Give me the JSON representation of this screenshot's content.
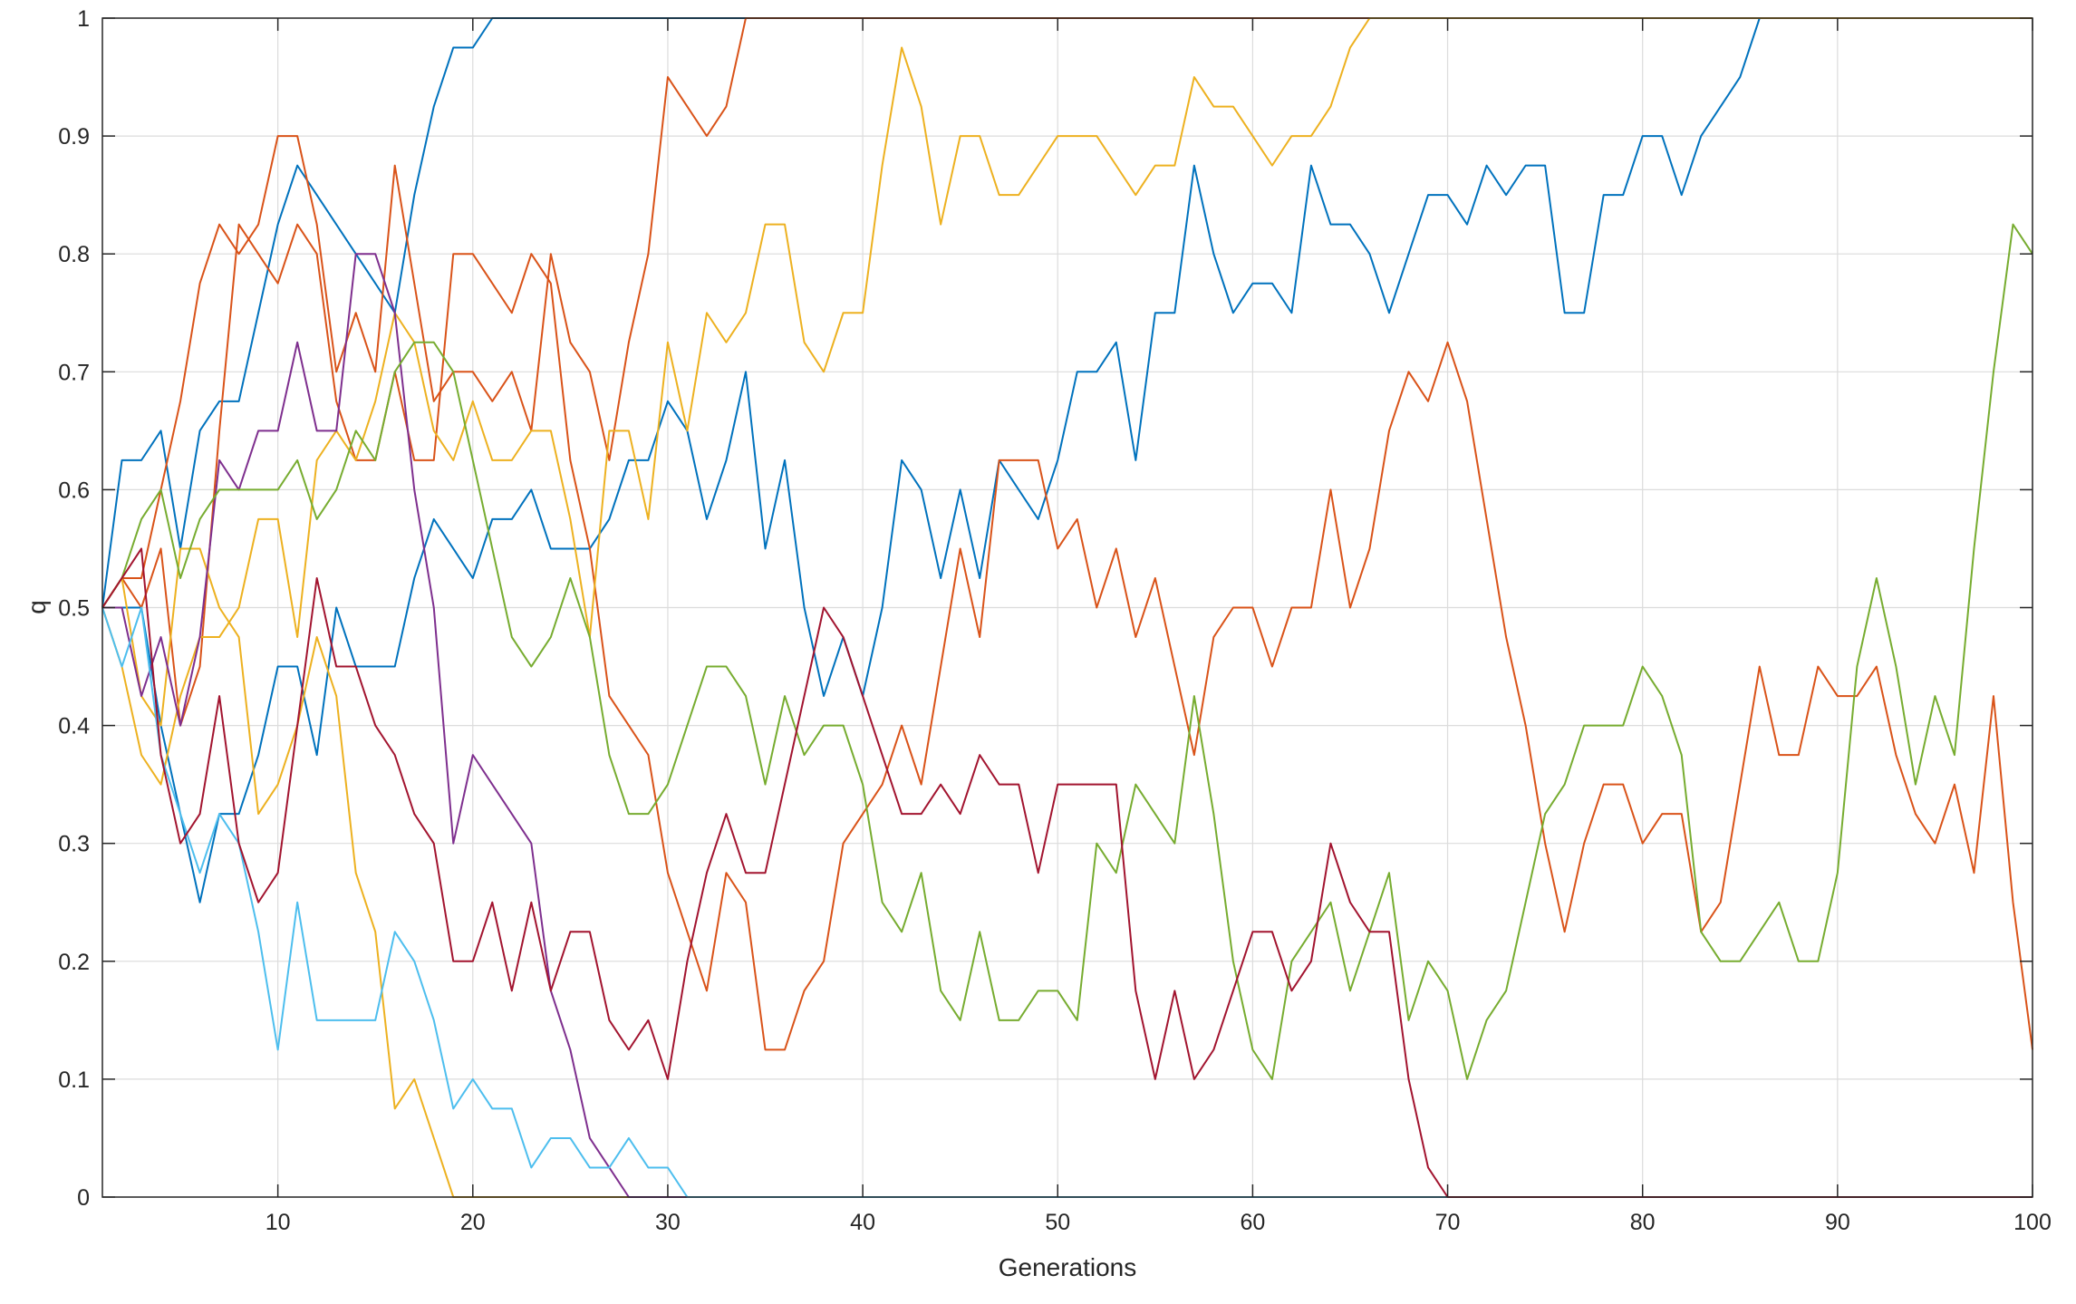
{
  "chart_data": {
    "type": "line",
    "title": "",
    "xlabel": "Generations",
    "ylabel": "q",
    "xlim": [
      1,
      100
    ],
    "ylim": [
      0,
      1
    ],
    "xticks": [
      10,
      20,
      30,
      40,
      50,
      60,
      70,
      80,
      90,
      100
    ],
    "yticks": [
      0,
      0.1,
      0.2,
      0.3,
      0.4,
      0.5,
      0.6,
      0.7,
      0.8,
      0.9,
      1
    ],
    "ytick_labels": [
      "0",
      "0.1",
      "0.2",
      "0.3",
      "0.4",
      "0.5",
      "0.6",
      "0.7",
      "0.8",
      "0.9",
      "1"
    ],
    "grid": true,
    "x": [
      1,
      2,
      3,
      4,
      5,
      6,
      7,
      8,
      9,
      10,
      11,
      12,
      13,
      14,
      15,
      16,
      17,
      18,
      19,
      20,
      21,
      22,
      23,
      24,
      25,
      26,
      27,
      28,
      29,
      30,
      31,
      32,
      33,
      34,
      35,
      36,
      37,
      38,
      39,
      40,
      41,
      42,
      43,
      44,
      45,
      46,
      47,
      48,
      49,
      50,
      51,
      52,
      53,
      54,
      55,
      56,
      57,
      58,
      59,
      60,
      61,
      62,
      63,
      64,
      65,
      66,
      67,
      68,
      69,
      70,
      71,
      72,
      73,
      74,
      75,
      76,
      77,
      78,
      79,
      80,
      81,
      82,
      83,
      84,
      85,
      86,
      87,
      88,
      89,
      90,
      91,
      92,
      93,
      94,
      95,
      96,
      97,
      98,
      99,
      100
    ],
    "series": [
      {
        "color": "#0072BD",
        "values": [
          0.5,
          0.625,
          0.625,
          0.65,
          0.55,
          0.65,
          0.675,
          0.675,
          0.75,
          0.825,
          0.875,
          0.85,
          0.825,
          0.8,
          0.775,
          0.75,
          0.85,
          0.925,
          0.975,
          0.975,
          1,
          1,
          1,
          1,
          1,
          1,
          1,
          1,
          1,
          1,
          1,
          1,
          1,
          1,
          1,
          1,
          1,
          1,
          1,
          1,
          1,
          1,
          1,
          1,
          1,
          1,
          1,
          1,
          1,
          1,
          1,
          1,
          1,
          1,
          1,
          1,
          1,
          1,
          1,
          1,
          1,
          1,
          1,
          1,
          1,
          1,
          1,
          1,
          1,
          1,
          1,
          1,
          1,
          1,
          1,
          1,
          1,
          1,
          1,
          1,
          1,
          1,
          1,
          1,
          1,
          1,
          1,
          1,
          1,
          1,
          1,
          1,
          1,
          1,
          1,
          1,
          1,
          1,
          1,
          1
        ]
      },
      {
        "color": "#0072BD",
        "values": [
          0.5,
          0.5,
          0.5,
          0.4,
          0.325,
          0.25,
          0.325,
          0.325,
          0.375,
          0.45,
          0.45,
          0.375,
          0.5,
          0.45,
          0.45,
          0.45,
          0.525,
          0.575,
          0.55,
          0.525,
          0.575,
          0.575,
          0.6,
          0.55,
          0.55,
          0.55,
          0.575,
          0.625,
          0.625,
          0.675,
          0.65,
          0.575,
          0.625,
          0.7,
          0.55,
          0.625,
          0.5,
          0.425,
          0.475,
          0.425,
          0.5,
          0.625,
          0.6,
          0.525,
          0.6,
          0.525,
          0.625,
          0.6,
          0.575,
          0.625,
          0.7,
          0.7,
          0.725,
          0.625,
          0.75,
          0.75,
          0.875,
          0.8,
          0.75,
          0.775,
          0.775,
          0.75,
          0.875,
          0.825,
          0.825,
          0.8,
          0.75,
          0.8,
          0.85,
          0.85,
          0.825,
          0.875,
          0.85,
          0.875,
          0.875,
          0.75,
          0.75,
          0.85,
          0.85,
          0.9,
          0.9,
          0.85,
          0.9,
          0.925,
          0.95,
          1,
          1,
          1,
          1,
          1,
          1,
          1,
          1,
          1,
          1,
          1,
          1,
          1,
          1,
          1
        ]
      },
      {
        "color": "#D95319",
        "values": [
          0.5,
          0.525,
          0.525,
          0.6,
          0.675,
          0.775,
          0.825,
          0.8,
          0.825,
          0.9,
          0.9,
          0.825,
          0.7,
          0.75,
          0.7,
          0.875,
          0.775,
          0.675,
          0.7,
          0.7,
          0.675,
          0.7,
          0.65,
          0.8,
          0.725,
          0.7,
          0.625,
          0.725,
          0.8,
          0.95,
          0.925,
          0.9,
          0.925,
          1,
          1,
          1,
          1,
          1,
          1,
          1,
          1,
          1,
          1,
          1,
          1,
          1,
          1,
          1,
          1,
          1,
          1,
          1,
          1,
          1,
          1,
          1,
          1,
          1,
          1,
          1,
          1,
          1,
          1,
          1,
          1,
          1,
          1,
          1,
          1,
          1,
          1,
          1,
          1,
          1,
          1,
          1,
          1,
          1,
          1,
          1,
          1,
          1,
          1,
          1,
          1,
          1,
          1,
          1,
          1,
          1,
          1,
          1,
          1,
          1,
          1,
          1,
          1,
          1,
          1,
          1
        ]
      },
      {
        "color": "#D95319",
        "values": [
          0.5,
          0.525,
          0.5,
          0.55,
          0.4,
          0.45,
          0.65,
          0.825,
          0.8,
          0.775,
          0.825,
          0.8,
          0.675,
          0.625,
          0.625,
          0.7,
          0.625,
          0.625,
          0.8,
          0.8,
          0.775,
          0.75,
          0.8,
          0.775,
          0.625,
          0.55,
          0.425,
          0.4,
          0.375,
          0.275,
          0.225,
          0.175,
          0.275,
          0.25,
          0.125,
          0.125,
          0.175,
          0.2,
          0.3,
          0.325,
          0.35,
          0.4,
          0.35,
          0.45,
          0.55,
          0.475,
          0.625,
          0.625,
          0.625,
          0.55,
          0.575,
          0.5,
          0.55,
          0.475,
          0.525,
          0.45,
          0.375,
          0.475,
          0.5,
          0.5,
          0.45,
          0.5,
          0.5,
          0.6,
          0.5,
          0.55,
          0.65,
          0.7,
          0.675,
          0.725,
          0.675,
          0.575,
          0.475,
          0.4,
          0.3,
          0.225,
          0.3,
          0.35,
          0.35,
          0.3,
          0.325,
          0.325,
          0.225,
          0.25,
          0.35,
          0.45,
          0.375,
          0.375,
          0.45,
          0.425,
          0.425,
          0.45,
          0.375,
          0.325,
          0.3,
          0.35,
          0.275,
          0.425,
          0.25,
          0.125
        ]
      },
      {
        "color": "#EDB120",
        "values": [
          0.5,
          0.45,
          0.375,
          0.35,
          0.425,
          0.475,
          0.475,
          0.5,
          0.575,
          0.575,
          0.475,
          0.625,
          0.65,
          0.625,
          0.675,
          0.75,
          0.725,
          0.65,
          0.625,
          0.675,
          0.625,
          0.625,
          0.65,
          0.65,
          0.575,
          0.475,
          0.65,
          0.65,
          0.575,
          0.725,
          0.65,
          0.75,
          0.725,
          0.75,
          0.825,
          0.825,
          0.725,
          0.7,
          0.75,
          0.75,
          0.875,
          0.975,
          0.925,
          0.825,
          0.9,
          0.9,
          0.85,
          0.85,
          0.875,
          0.9,
          0.9,
          0.9,
          0.875,
          0.85,
          0.875,
          0.875,
          0.95,
          0.925,
          0.925,
          0.9,
          0.875,
          0.9,
          0.9,
          0.925,
          0.975,
          1,
          1,
          1,
          1,
          1,
          1,
          1,
          1,
          1,
          1,
          1,
          1,
          1,
          1,
          1,
          1,
          1,
          1,
          1,
          1,
          1,
          1,
          1,
          1,
          1,
          1,
          1,
          1,
          1,
          1,
          1,
          1,
          1,
          1,
          1
        ]
      },
      {
        "color": "#EDB120",
        "values": [
          0.5,
          0.525,
          0.425,
          0.4,
          0.55,
          0.55,
          0.5,
          0.475,
          0.325,
          0.35,
          0.4,
          0.475,
          0.425,
          0.275,
          0.225,
          0.075,
          0.1,
          0.05,
          0,
          0,
          0,
          0,
          0,
          0,
          0,
          0,
          0,
          0,
          0,
          0,
          0,
          0,
          0,
          0,
          0,
          0,
          0,
          0,
          0,
          0,
          0,
          0,
          0,
          0,
          0,
          0,
          0,
          0,
          0,
          0,
          0,
          0,
          0,
          0,
          0,
          0,
          0,
          0,
          0,
          0,
          0,
          0,
          0,
          0,
          0,
          0,
          0,
          0,
          0,
          0,
          0,
          0,
          0,
          0,
          0,
          0,
          0,
          0,
          0,
          0,
          0,
          0,
          0,
          0,
          0,
          0,
          0,
          0,
          0,
          0,
          0,
          0,
          0,
          0,
          0,
          0,
          0,
          0,
          0,
          0
        ]
      },
      {
        "color": "#7E2F8E",
        "values": [
          0.5,
          0.5,
          0.425,
          0.475,
          0.4,
          0.475,
          0.625,
          0.6,
          0.65,
          0.65,
          0.725,
          0.65,
          0.65,
          0.8,
          0.8,
          0.75,
          0.6,
          0.5,
          0.3,
          0.375,
          0.35,
          0.325,
          0.3,
          0.175,
          0.125,
          0.05,
          0.025,
          0,
          0,
          0,
          0,
          0,
          0,
          0,
          0,
          0,
          0,
          0,
          0,
          0,
          0,
          0,
          0,
          0,
          0,
          0,
          0,
          0,
          0,
          0,
          0,
          0,
          0,
          0,
          0,
          0,
          0,
          0,
          0,
          0,
          0,
          0,
          0,
          0,
          0,
          0,
          0,
          0,
          0,
          0,
          0,
          0,
          0,
          0,
          0,
          0,
          0,
          0,
          0,
          0,
          0,
          0,
          0,
          0,
          0,
          0,
          0,
          0,
          0,
          0,
          0,
          0,
          0,
          0,
          0,
          0,
          0,
          0,
          0,
          0
        ]
      },
      {
        "color": "#77AC30",
        "values": [
          0.5,
          0.525,
          0.575,
          0.6,
          0.525,
          0.575,
          0.6,
          0.6,
          0.6,
          0.6,
          0.625,
          0.575,
          0.6,
          0.65,
          0.625,
          0.7,
          0.725,
          0.725,
          0.7,
          0.625,
          0.55,
          0.475,
          0.45,
          0.475,
          0.525,
          0.475,
          0.375,
          0.325,
          0.325,
          0.35,
          0.4,
          0.45,
          0.45,
          0.425,
          0.35,
          0.425,
          0.375,
          0.4,
          0.4,
          0.35,
          0.25,
          0.225,
          0.275,
          0.175,
          0.15,
          0.225,
          0.15,
          0.15,
          0.175,
          0.175,
          0.15,
          0.3,
          0.275,
          0.35,
          0.325,
          0.3,
          0.425,
          0.325,
          0.2,
          0.125,
          0.1,
          0.2,
          0.225,
          0.25,
          0.175,
          0.225,
          0.275,
          0.15,
          0.2,
          0.175,
          0.1,
          0.15,
          0.175,
          0.25,
          0.325,
          0.35,
          0.4,
          0.4,
          0.4,
          0.45,
          0.425,
          0.375,
          0.225,
          0.2,
          0.2,
          0.225,
          0.25,
          0.2,
          0.2,
          0.275,
          0.45,
          0.525,
          0.45,
          0.35,
          0.425,
          0.375,
          0.55,
          0.7,
          0.825,
          0.8
        ]
      },
      {
        "color": "#4DBEEE",
        "values": [
          0.5,
          0.45,
          0.5,
          0.375,
          0.325,
          0.275,
          0.325,
          0.3,
          0.225,
          0.125,
          0.25,
          0.15,
          0.15,
          0.15,
          0.15,
          0.225,
          0.2,
          0.15,
          0.075,
          0.1,
          0.075,
          0.075,
          0.025,
          0.05,
          0.05,
          0.025,
          0.025,
          0.05,
          0.025,
          0.025,
          0,
          0,
          0,
          0,
          0,
          0,
          0,
          0,
          0,
          0,
          0,
          0,
          0,
          0,
          0,
          0,
          0,
          0,
          0,
          0,
          0,
          0,
          0,
          0,
          0,
          0,
          0,
          0,
          0,
          0,
          0,
          0,
          0,
          0,
          0,
          0,
          0,
          0,
          0,
          0,
          0,
          0,
          0,
          0,
          0,
          0,
          0,
          0,
          0,
          0,
          0,
          0,
          0,
          0,
          0,
          0,
          0,
          0,
          0,
          0,
          0,
          0,
          0,
          0,
          0,
          0,
          0,
          0,
          0,
          0
        ]
      },
      {
        "color": "#A2142F",
        "values": [
          0.5,
          0.525,
          0.55,
          0.375,
          0.3,
          0.325,
          0.425,
          0.3,
          0.25,
          0.275,
          0.4,
          0.525,
          0.45,
          0.45,
          0.4,
          0.375,
          0.325,
          0.3,
          0.2,
          0.2,
          0.25,
          0.175,
          0.25,
          0.175,
          0.225,
          0.225,
          0.15,
          0.125,
          0.15,
          0.1,
          0.2,
          0.275,
          0.325,
          0.275,
          0.275,
          0.35,
          0.425,
          0.5,
          0.475,
          0.425,
          0.375,
          0.325,
          0.325,
          0.35,
          0.325,
          0.375,
          0.35,
          0.35,
          0.275,
          0.35,
          0.35,
          0.35,
          0.35,
          0.175,
          0.1,
          0.175,
          0.1,
          0.125,
          0.175,
          0.225,
          0.225,
          0.175,
          0.2,
          0.3,
          0.25,
          0.225,
          0.225,
          0.1,
          0.025,
          0,
          0,
          0,
          0,
          0,
          0,
          0,
          0,
          0,
          0,
          0,
          0,
          0,
          0,
          0,
          0,
          0,
          0,
          0,
          0,
          0,
          0,
          0,
          0,
          0,
          0,
          0,
          0,
          0,
          0,
          0
        ]
      }
    ]
  }
}
